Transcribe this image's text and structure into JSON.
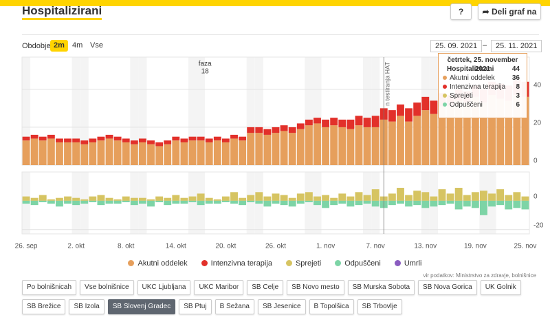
{
  "header": {
    "title": "Hospitalizirani",
    "help": "?",
    "share": "Deli graf na"
  },
  "period": {
    "label": "Obdobje",
    "options": [
      "2m",
      "4m",
      "Vse"
    ],
    "active": 0
  },
  "dates": {
    "from": "25. 09. 2021",
    "sep": "–",
    "to": "25. 11. 2021"
  },
  "chart_data": [
    {
      "type": "bar",
      "stacked": true,
      "ylim": [
        0,
        57
      ],
      "yticks": [
        0,
        20,
        40
      ],
      "grid": true,
      "annotations": [
        {
          "label": "faza",
          "text": "18",
          "at": 22
        },
        {
          "label": "n testiranja HAT",
          "at": 43.5
        }
      ],
      "series": [
        {
          "name": "Akutni oddelek",
          "color": "#e69f5c",
          "values": [
            13,
            14,
            13,
            14,
            12,
            12,
            12,
            11,
            12,
            13,
            14,
            13,
            12,
            11,
            12,
            11,
            10,
            11,
            13,
            12,
            13,
            13,
            12,
            13,
            12,
            14,
            13,
            17,
            17,
            16,
            17,
            18,
            17,
            19,
            21,
            22,
            20,
            21,
            20,
            19,
            21,
            20,
            20,
            24,
            23,
            26,
            23,
            26,
            29,
            27,
            31,
            31,
            34,
            33,
            36,
            33,
            37,
            35,
            34,
            37,
            36
          ]
        },
        {
          "name": "Intenzivna terapija",
          "color": "#e2302a",
          "values": [
            2,
            2,
            2,
            2,
            2,
            2,
            2,
            2,
            2,
            2,
            2,
            2,
            2,
            2,
            2,
            2,
            2,
            2,
            2,
            2,
            2,
            2,
            2,
            2,
            2,
            2,
            2,
            3,
            3,
            3,
            3,
            3,
            3,
            3,
            3,
            3,
            4,
            4,
            4,
            5,
            5,
            5,
            6,
            6,
            6,
            6,
            7,
            7,
            7,
            7,
            7,
            6,
            6,
            6,
            6,
            7,
            7,
            8,
            8,
            8,
            8
          ]
        }
      ]
    },
    {
      "type": "bar",
      "categories": [
        "26. sep",
        null,
        null,
        null,
        null,
        null,
        "2. okt",
        null,
        null,
        null,
        null,
        null,
        "8. okt",
        null,
        null,
        null,
        null,
        null,
        "14. okt",
        null,
        null,
        null,
        null,
        null,
        "20. okt",
        null,
        null,
        null,
        null,
        null,
        "26. okt",
        null,
        null,
        null,
        null,
        null,
        "1. nov",
        null,
        null,
        null,
        null,
        null,
        "7. nov",
        null,
        null,
        null,
        null,
        null,
        "13. nov",
        null,
        null,
        null,
        null,
        null,
        "19. nov",
        null,
        null,
        null,
        null,
        null,
        "25. nov"
      ],
      "ylim": [
        -23,
        20
      ],
      "yticks": [
        -20,
        0
      ],
      "grid": true,
      "series": [
        {
          "name": "Sprejeti",
          "color": "#d6c462",
          "values": [
            3,
            2,
            4,
            1,
            2,
            3,
            2,
            1,
            3,
            4,
            2,
            1,
            3,
            2,
            2,
            1,
            3,
            2,
            4,
            2,
            3,
            5,
            2,
            1,
            3,
            6,
            2,
            4,
            6,
            3,
            5,
            4,
            2,
            5,
            6,
            3,
            4,
            2,
            5,
            3,
            6,
            4,
            8,
            3,
            5,
            9,
            4,
            7,
            6,
            3,
            8,
            5,
            9,
            4,
            6,
            7,
            5,
            8,
            4,
            6,
            3
          ]
        },
        {
          "name": "Odpuščeni",
          "color": "#7dd4a6",
          "values": [
            -2,
            -3,
            -1,
            -2,
            -4,
            -2,
            -3,
            -2,
            -1,
            -3,
            -2,
            -2,
            -1,
            -3,
            -2,
            -4,
            -1,
            -3,
            -2,
            -2,
            -1,
            -3,
            -2,
            -2,
            -1,
            -2,
            -3,
            -1,
            -2,
            -4,
            -2,
            -3,
            -4,
            -2,
            -1,
            -3,
            -5,
            -3,
            -2,
            -4,
            -3,
            -2,
            -4,
            -5,
            -3,
            -2,
            -4,
            -3,
            -5,
            -4,
            -3,
            -2,
            -6,
            -4,
            -5,
            -10,
            -4,
            -3,
            -6,
            -5,
            -6
          ]
        },
        {
          "name": "Umrli",
          "color": "#8a5cc0",
          "values": [
            0,
            0,
            0,
            0,
            0,
            0,
            0,
            0,
            0,
            0,
            0,
            0,
            0,
            0,
            0,
            0,
            0,
            0,
            0,
            0,
            0,
            0,
            0,
            0,
            0,
            0,
            0,
            0,
            0,
            0,
            0,
            0,
            0,
            0,
            0,
            0,
            0,
            0,
            0,
            0,
            0,
            0,
            0,
            0,
            0,
            0,
            0,
            0,
            0,
            0,
            0,
            0,
            0,
            0,
            0,
            0,
            0,
            0,
            0,
            0,
            0
          ]
        }
      ]
    }
  ],
  "tooltip": {
    "date": "četrtek, 25. november 2021",
    "total": 44,
    "values": [
      36,
      8,
      3,
      6
    ]
  },
  "source": "vir podatkov: Ministrstvo za zdravje, bolnišnice",
  "hospitals": [
    "Po bolnišnicah",
    "Vse bolnišnice",
    "UKC Ljubljana",
    "UKC Maribor",
    "SB Celje",
    "SB Novo mesto",
    "SB Murska Sobota",
    "SB Nova Gorica",
    "UK Golnik",
    "SB Brežice",
    "SB Izola",
    "SB Slovenj Gradec",
    "SB Ptuj",
    "B Sežana",
    "SB Jesenice",
    "B Topolšica",
    "SB Trbovlje"
  ],
  "selected_hospital": 11
}
